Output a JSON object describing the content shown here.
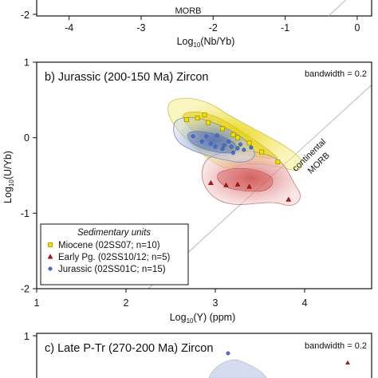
{
  "chart_data": [
    {
      "panel": "a",
      "type": "scatter",
      "title": "",
      "xlabel_parts": [
        "Log",
        "10",
        "(Nb/Yb)"
      ],
      "ylabel": "",
      "x_ticks": [
        "-4",
        "-3",
        "-2",
        "-1",
        "0"
      ],
      "y_ticks": [
        "-2"
      ],
      "xlim": [
        -4.45,
        0.2
      ],
      "line_label": "MORB"
    },
    {
      "panel": "b",
      "type": "scatter",
      "title": "b) Jurassic (200-150 Ma) Zircon",
      "bandwidth_label": "bandwidth = 0.2",
      "xlabel_parts": [
        "Log",
        "10",
        "(Y) (ppm)"
      ],
      "ylabel_parts": [
        "Log",
        "10",
        "(U/Yb)"
      ],
      "x_ticks": [
        "1",
        "2",
        "3",
        "4"
      ],
      "y_ticks": [
        "1",
        "0",
        "-1",
        "-2"
      ],
      "xlim": [
        1,
        4.75
      ],
      "ylim": [
        -2,
        1
      ],
      "reference_line": {
        "label_line1": "continental",
        "label_line2": "MORB",
        "points": [
          [
            2.25,
            -2
          ],
          [
            4.75,
            0.7
          ]
        ]
      },
      "legend": {
        "title": "Sedimentary units",
        "entries": [
          {
            "label": "Miocene (02SS07; n=10)",
            "marker": "square",
            "fill": "#f2e000",
            "stroke": "#9a8a00"
          },
          {
            "label": "Early Pg. (02SS10/12; n=5)",
            "marker": "triangle",
            "fill": "#b01515",
            "stroke": "#7a0a0a"
          },
          {
            "label": "Jurassic (02SS01C; n=15)",
            "marker": "circle",
            "fill": "#4a6fc8",
            "stroke": "#2a4a98"
          }
        ]
      },
      "series": [
        {
          "name": "Miocene (02SS07; n=10)",
          "color": "#f2e000",
          "points": [
            [
              2.68,
              0.24
            ],
            [
              2.8,
              0.26
            ],
            [
              2.88,
              0.3
            ],
            [
              2.92,
              0.2
            ],
            [
              3.08,
              0.12
            ],
            [
              3.2,
              0.04
            ],
            [
              3.25,
              0.0
            ],
            [
              3.38,
              -0.07
            ],
            [
              3.52,
              -0.19
            ],
            [
              3.7,
              -0.32
            ]
          ]
        },
        {
          "name": "Early Pg. (02SS10/12; n=5)",
          "color": "#b01515",
          "points": [
            [
              2.95,
              -0.6
            ],
            [
              3.12,
              -0.63
            ],
            [
              3.25,
              -0.62
            ],
            [
              3.38,
              -0.65
            ],
            [
              3.82,
              -0.82
            ]
          ]
        },
        {
          "name": "Jurassic (02SS01C; n=15)",
          "color": "#4a6fc8",
          "points": [
            [
              2.75,
              0.02
            ],
            [
              2.85,
              -0.05
            ],
            [
              2.9,
              0.02
            ],
            [
              2.95,
              -0.08
            ],
            [
              3.0,
              -0.12
            ],
            [
              3.02,
              0.03
            ],
            [
              3.08,
              -0.15
            ],
            [
              3.1,
              -0.1
            ],
            [
              3.15,
              -0.05
            ],
            [
              3.18,
              -0.12
            ],
            [
              3.2,
              -0.2
            ],
            [
              3.25,
              -0.14
            ],
            [
              3.28,
              -0.09
            ],
            [
              3.32,
              -0.16
            ],
            [
              3.4,
              -0.13
            ]
          ]
        }
      ],
      "density_colors": {
        "Miocene": "#f0e060",
        "Early Pg.": "#e08a8a",
        "Jurassic": "#9aaedc"
      }
    },
    {
      "panel": "c",
      "type": "scatter",
      "title": "c) Late P-Tr (270-200 Ma) Zircon",
      "bandwidth_label": "bandwidth = 0.2",
      "y_ticks": [
        "1"
      ]
    }
  ]
}
